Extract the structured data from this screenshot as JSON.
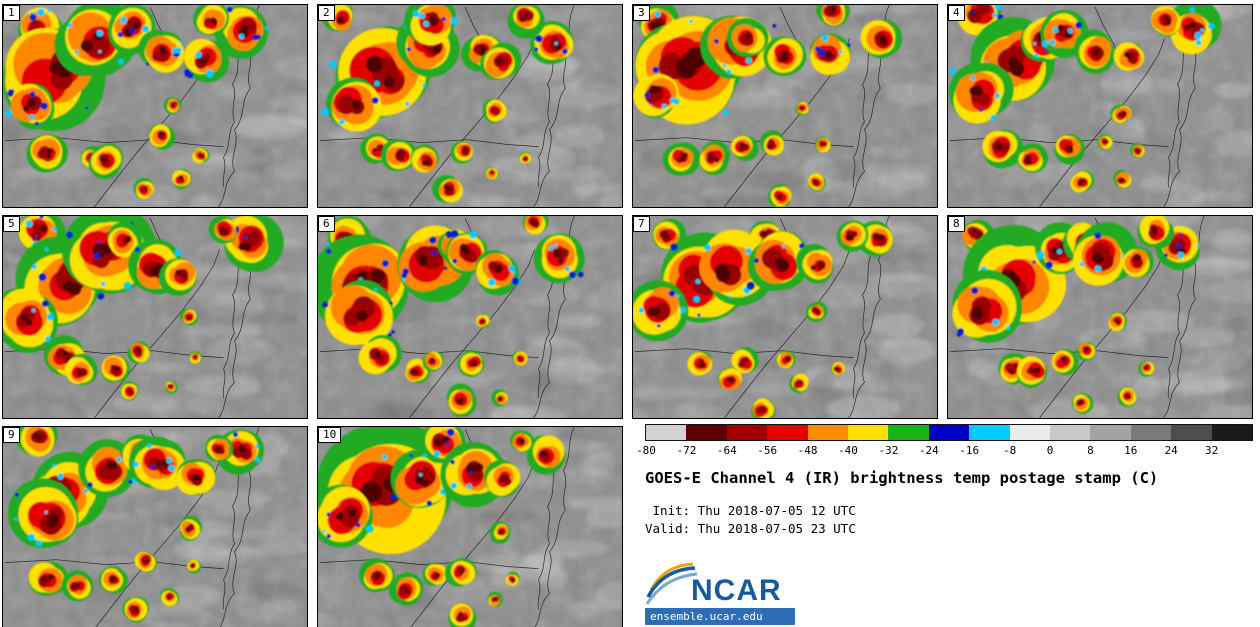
{
  "title": "GOES-E Channel 4 (IR) brightness temp postage stamp (C)",
  "init_line": " Init: Thu 2018-07-05 12 UTC",
  "valid_line": "Valid: Thu 2018-07-05 23 UTC",
  "panels": [
    "1",
    "2",
    "3",
    "4",
    "5",
    "6",
    "7",
    "8",
    "9",
    "10"
  ],
  "colorbar": {
    "units": "C",
    "ticks": [
      "-80",
      "-72",
      "-64",
      "-56",
      "-48",
      "-40",
      "-32",
      "-24",
      "-16",
      "-8",
      "0",
      "8",
      "16",
      "24",
      "32"
    ],
    "colors": [
      "#d2d2d2",
      "#5a0000",
      "#a00000",
      "#e60000",
      "#ff8c00",
      "#ffe100",
      "#19b219",
      "#0000c8",
      "#00ccff",
      "#ebebeb",
      "#c8c8c8",
      "#a3a3a3",
      "#7a7a7a",
      "#4d4d4d",
      "#1a1a1a"
    ]
  },
  "logo": {
    "text": "NCAR",
    "url_text": "ensemble.ucar.edu",
    "brand_blue": "#19599f",
    "light_blue": "#7aa8d4",
    "swoosh_orange": "#f0a202",
    "bar_blue": "#2e6db4"
  }
}
